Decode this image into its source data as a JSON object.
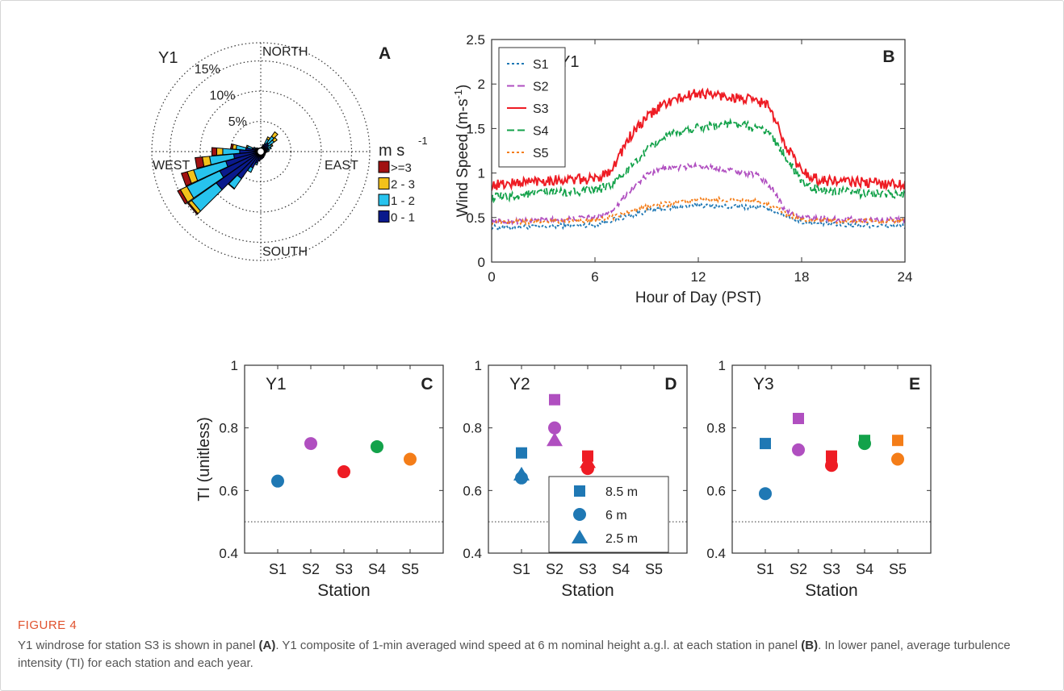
{
  "figure": {
    "label": "FIGURE 4",
    "caption_parts": [
      {
        "text": "Y1 windrose for station S3 is shown in panel ",
        "bold": false
      },
      {
        "text": "(A)",
        "bold": true
      },
      {
        "text": ". Y1 composite of 1-min averaged wind speed at 6 m nominal height a.g.l. at each station in panel ",
        "bold": false
      },
      {
        "text": "(B)",
        "bold": true
      },
      {
        "text": ". In lower panel, average turbulence intensity (TI) for each station and each year.",
        "bold": false
      }
    ]
  },
  "colors": {
    "S1": "#1f78b4",
    "S2": "#b04fc0",
    "S3": "#ee1c24",
    "S4": "#13a24a",
    "S5": "#f47d18",
    "bin_ge3": "#a11212",
    "bin_2_3": "#f3c21b",
    "bin_1_2": "#27c3ee",
    "bin_0_1": "#0a1a8c"
  },
  "chart_data": [
    {
      "panel": "A",
      "type": "windrose",
      "label": "Y1",
      "compass": {
        "north": "NORTH",
        "east": "EAST",
        "south": "SOUTH",
        "west": "WEST"
      },
      "ring_labels": [
        {
          "value": 5,
          "text": "5%"
        },
        {
          "value": 10,
          "text": "10%"
        },
        {
          "value": 15,
          "text": "15%"
        }
      ],
      "rmax": 18,
      "legend_title_base": "m s",
      "legend_title_exp": "-1",
      "bins": [
        "0 - 1",
        "1 - 2",
        "2 - 3",
        ">=3"
      ],
      "bin_color_keys": [
        "bin_0_1",
        "bin_1_2",
        "bin_2_3",
        "bin_ge3"
      ],
      "legend_order": [
        3,
        2,
        1,
        0
      ],
      "bin_labels": [
        ">=3",
        "2 - 3",
        "1 - 2",
        "0 - 1"
      ],
      "sector_width_deg": 10,
      "sectors": [
        {
          "dir": 0,
          "values": [
            0.6,
            0,
            0,
            0
          ]
        },
        {
          "dir": 10,
          "values": [
            0.7,
            0,
            0,
            0
          ]
        },
        {
          "dir": 20,
          "values": [
            1.0,
            0.2,
            0,
            0
          ]
        },
        {
          "dir": 30,
          "values": [
            1.5,
            0.8,
            0.4,
            0
          ]
        },
        {
          "dir": 40,
          "values": [
            1.8,
            1.3,
            0.9,
            0
          ]
        },
        {
          "dir": 50,
          "values": [
            1.6,
            1.1,
            0.6,
            0
          ]
        },
        {
          "dir": 60,
          "values": [
            1.3,
            0.7,
            0.2,
            0
          ]
        },
        {
          "dir": 70,
          "values": [
            1.3,
            0.5,
            0,
            0
          ]
        },
        {
          "dir": 80,
          "values": [
            1.1,
            0.3,
            0,
            0
          ]
        },
        {
          "dir": 90,
          "values": [
            0.9,
            0.2,
            0,
            0
          ]
        },
        {
          "dir": 100,
          "values": [
            0.8,
            0.1,
            0,
            0
          ]
        },
        {
          "dir": 110,
          "values": [
            0.8,
            0,
            0,
            0
          ]
        },
        {
          "dir": 120,
          "values": [
            0.8,
            0,
            0,
            0
          ]
        },
        {
          "dir": 130,
          "values": [
            0.9,
            0,
            0,
            0
          ]
        },
        {
          "dir": 140,
          "values": [
            0.9,
            0,
            0,
            0
          ]
        },
        {
          "dir": 150,
          "values": [
            1.0,
            0,
            0,
            0
          ]
        },
        {
          "dir": 160,
          "values": [
            1.1,
            0,
            0,
            0
          ]
        },
        {
          "dir": 170,
          "values": [
            1.2,
            0,
            0,
            0
          ]
        },
        {
          "dir": 180,
          "values": [
            1.3,
            0,
            0,
            0
          ]
        },
        {
          "dir": 190,
          "values": [
            1.5,
            0.1,
            0,
            0
          ]
        },
        {
          "dir": 200,
          "values": [
            2.0,
            0.3,
            0,
            0
          ]
        },
        {
          "dir": 210,
          "values": [
            3.0,
            0.8,
            0,
            0
          ]
        },
        {
          "dir": 220,
          "values": [
            5.5,
            2.0,
            0.1,
            0
          ]
        },
        {
          "dir": 230,
          "values": [
            9.0,
            5.0,
            0.6,
            0.2
          ]
        },
        {
          "dir": 240,
          "values": [
            7.5,
            6.0,
            1.2,
            0.5
          ]
        },
        {
          "dir": 250,
          "values": [
            6.0,
            5.5,
            1.1,
            1.0
          ]
        },
        {
          "dir": 260,
          "values": [
            4.5,
            4.0,
            1.2,
            1.2
          ]
        },
        {
          "dir": 270,
          "values": [
            3.5,
            2.8,
            1.0,
            0.8
          ]
        },
        {
          "dir": 280,
          "values": [
            2.5,
            1.6,
            0.6,
            0.3
          ]
        },
        {
          "dir": 290,
          "values": [
            1.5,
            0.8,
            0.2,
            0
          ]
        },
        {
          "dir": 300,
          "values": [
            1.0,
            0.3,
            0,
            0
          ]
        },
        {
          "dir": 310,
          "values": [
            0.8,
            0.1,
            0,
            0
          ]
        },
        {
          "dir": 320,
          "values": [
            0.7,
            0,
            0,
            0
          ]
        },
        {
          "dir": 330,
          "values": [
            0.6,
            0,
            0,
            0
          ]
        },
        {
          "dir": 340,
          "values": [
            0.6,
            0,
            0,
            0
          ]
        },
        {
          "dir": 350,
          "values": [
            0.6,
            0,
            0,
            0
          ]
        }
      ]
    },
    {
      "panel": "B",
      "type": "line",
      "label": "Y1",
      "xlabel": "Hour of Day (PST)",
      "ylabel_base": "Wind Speed (m-s",
      "ylabel_exp": "-1",
      "ylabel_close": ")",
      "xlim": [
        0,
        24
      ],
      "ylim": [
        0,
        2.5
      ],
      "xticks": [
        0,
        6,
        12,
        18,
        24
      ],
      "xtick_labels": [
        "0",
        "6",
        "12",
        "18",
        "24"
      ],
      "yticks": [
        0,
        0.5,
        1,
        1.5,
        2,
        2.5
      ],
      "ytick_labels": [
        "0",
        "0.5",
        "1",
        "1.5",
        "2",
        "2.5"
      ],
      "legend_position": "top-left",
      "series": [
        {
          "name": "S1",
          "color_key": "S1",
          "dash": "dotted",
          "noise": 0.025,
          "x": [
            0,
            3,
            6,
            7,
            9,
            10,
            12,
            14,
            15.5,
            16.5,
            17,
            18,
            20,
            24
          ],
          "y": [
            0.39,
            0.4,
            0.42,
            0.47,
            0.57,
            0.6,
            0.64,
            0.62,
            0.62,
            0.57,
            0.52,
            0.45,
            0.42,
            0.4
          ]
        },
        {
          "name": "S2",
          "color_key": "S2",
          "dash": "dashed",
          "noise": 0.03,
          "x": [
            0,
            3,
            6,
            7,
            8,
            9,
            10,
            12,
            14,
            15.5,
            16.5,
            17,
            18,
            20,
            24
          ],
          "y": [
            0.45,
            0.47,
            0.5,
            0.58,
            0.8,
            0.97,
            1.05,
            1.08,
            1.03,
            0.97,
            0.78,
            0.58,
            0.5,
            0.48,
            0.47
          ]
        },
        {
          "name": "S3",
          "color_key": "S3",
          "dash": "solid",
          "noise": 0.06,
          "x": [
            0,
            3,
            6,
            7,
            8,
            9,
            10,
            12,
            14,
            15,
            16,
            17,
            18,
            19,
            24
          ],
          "y": [
            0.86,
            0.92,
            0.93,
            1.05,
            1.4,
            1.62,
            1.78,
            1.9,
            1.85,
            1.82,
            1.78,
            1.35,
            1.02,
            0.92,
            0.87
          ]
        },
        {
          "name": "S4",
          "color_key": "S4",
          "dash": "dashed",
          "noise": 0.05,
          "x": [
            0,
            3,
            6,
            7,
            8,
            9,
            10,
            12,
            14,
            15,
            16,
            17,
            18,
            19,
            24
          ],
          "y": [
            0.72,
            0.78,
            0.8,
            0.88,
            1.05,
            1.25,
            1.4,
            1.52,
            1.55,
            1.52,
            1.48,
            1.2,
            0.9,
            0.8,
            0.75
          ]
        },
        {
          "name": "S5",
          "color_key": "S5",
          "dash": "dotted",
          "noise": 0.025,
          "x": [
            0,
            3,
            6,
            7,
            9,
            10,
            12,
            14,
            15.5,
            16.5,
            17,
            18,
            20,
            24
          ],
          "y": [
            0.44,
            0.46,
            0.47,
            0.5,
            0.62,
            0.65,
            0.7,
            0.7,
            0.68,
            0.62,
            0.55,
            0.48,
            0.46,
            0.46
          ]
        }
      ]
    },
    {
      "panel": "C",
      "type": "scatter",
      "label": "Y1",
      "ylabel": "TI (unitless)",
      "xlabel": "Station",
      "categories": [
        "S1",
        "S2",
        "S3",
        "S4",
        "S5"
      ],
      "ylim": [
        0.4,
        1
      ],
      "yticks": [
        0.4,
        0.6,
        0.8,
        1
      ],
      "ytick_labels": [
        "0.4",
        "0.6",
        "0.8",
        "1"
      ],
      "refline": 0.5,
      "series": [
        {
          "name": "6 m",
          "marker": "circle",
          "values": [
            0.63,
            0.75,
            0.66,
            0.74,
            0.7
          ]
        }
      ]
    },
    {
      "panel": "D",
      "type": "scatter",
      "label": "Y2",
      "xlabel": "Station",
      "categories": [
        "S1",
        "S2",
        "S3",
        "S4",
        "S5"
      ],
      "ylim": [
        0.4,
        1
      ],
      "yticks": [
        0.4,
        0.6,
        0.8,
        1
      ],
      "ytick_labels": [
        "0.4",
        "0.6",
        "0.8",
        "1"
      ],
      "refline": 0.5,
      "legend_position": "bottom-right",
      "series": [
        {
          "name": "8.5 m",
          "marker": "square",
          "values": [
            0.72,
            0.89,
            0.71,
            null,
            null
          ]
        },
        {
          "name": "6 m",
          "marker": "circle",
          "values": [
            0.64,
            0.8,
            0.67,
            null,
            null
          ]
        },
        {
          "name": "2.5 m",
          "marker": "triangle",
          "values": [
            0.65,
            0.76,
            0.69,
            null,
            null
          ]
        }
      ]
    },
    {
      "panel": "E",
      "type": "scatter",
      "label": "Y3",
      "xlabel": "Station",
      "categories": [
        "S1",
        "S2",
        "S3",
        "S4",
        "S5"
      ],
      "ylim": [
        0.4,
        1
      ],
      "yticks": [
        0.4,
        0.6,
        0.8,
        1
      ],
      "ytick_labels": [
        "0.4",
        "0.6",
        "0.8",
        "1"
      ],
      "refline": 0.5,
      "series": [
        {
          "name": "8.5 m",
          "marker": "square",
          "values": [
            0.75,
            0.83,
            0.71,
            0.76,
            0.76
          ]
        },
        {
          "name": "6 m",
          "marker": "circle",
          "values": [
            0.59,
            0.73,
            0.68,
            0.75,
            0.7
          ]
        }
      ]
    }
  ]
}
